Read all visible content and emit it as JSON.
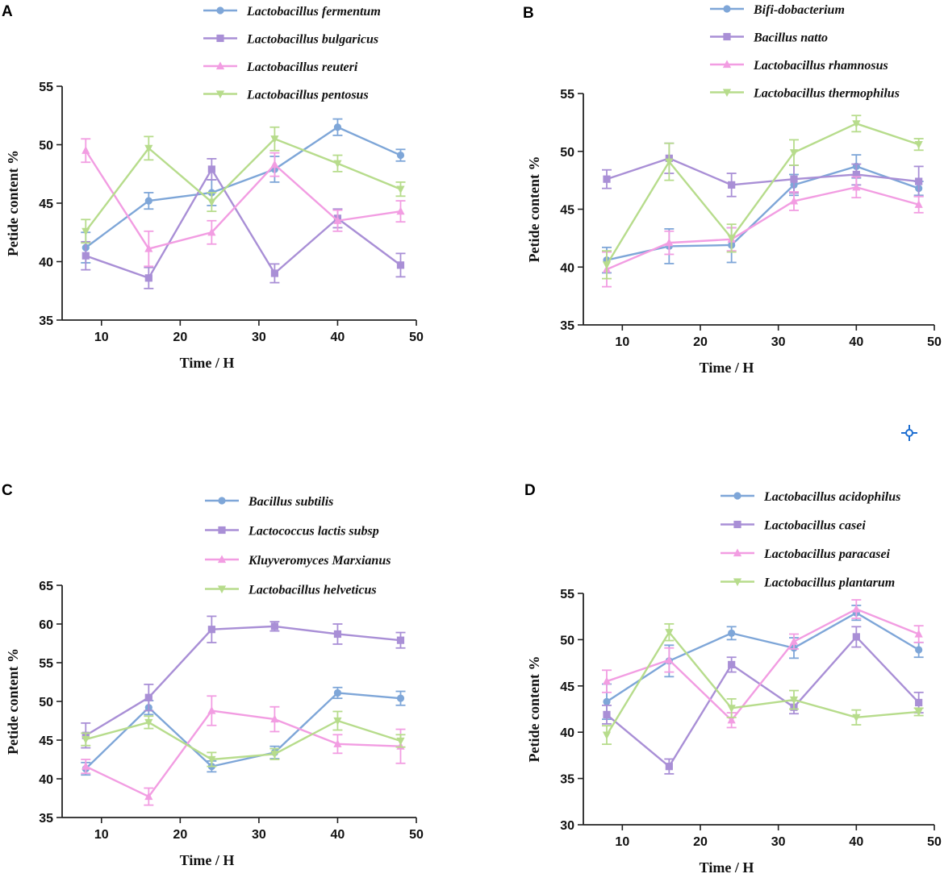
{
  "colors": {
    "blue": "#7ea6d8",
    "purple": "#a98fd6",
    "pink": "#f29de2",
    "green": "#b7dc8c",
    "cursor": "#1f6fd1"
  },
  "cursor_icon": "crosshair-icon",
  "chart_data": [
    {
      "panel": "A",
      "type": "line",
      "xlabel": "Time / H",
      "ylabel": "Petide  content %",
      "xlim": [
        5,
        50
      ],
      "ylim": [
        35,
        55
      ],
      "xticks": [
        10,
        20,
        30,
        40,
        50
      ],
      "yticks": [
        35,
        40,
        45,
        50,
        55
      ],
      "x": [
        8,
        16,
        24,
        32,
        40,
        48
      ],
      "legend_position": "top",
      "series": [
        {
          "name": "Lactobacillus fermentum",
          "color": "blue",
          "marker": "circle",
          "values": [
            41.2,
            45.2,
            45.9,
            47.9,
            51.5,
            49.1
          ],
          "errors": [
            1.3,
            0.7,
            1.1,
            1.1,
            0.7,
            0.5
          ]
        },
        {
          "name": "Lactobacillus bulgaricus",
          "color": "purple",
          "marker": "square",
          "values": [
            40.5,
            38.6,
            47.9,
            39.0,
            43.7,
            39.7
          ],
          "errors": [
            1.2,
            0.9,
            0.9,
            0.8,
            0.8,
            1.0
          ]
        },
        {
          "name": "Lactobacillus reuteri",
          "color": "pink",
          "marker": "triangle-up",
          "values": [
            49.5,
            41.1,
            42.5,
            48.3,
            43.5,
            44.3
          ],
          "errors": [
            1.0,
            1.5,
            1.0,
            1.0,
            0.9,
            0.9
          ]
        },
        {
          "name": "Lactobacillus pentosus",
          "color": "green",
          "marker": "triangle-down",
          "values": [
            42.6,
            49.7,
            45.1,
            50.5,
            48.4,
            46.2
          ],
          "errors": [
            1.0,
            1.0,
            0.8,
            1.0,
            0.7,
            0.6
          ]
        }
      ]
    },
    {
      "panel": "B",
      "type": "line",
      "xlabel": "Time / H",
      "ylabel": "Petide  content %",
      "xlim": [
        5,
        50
      ],
      "ylim": [
        35,
        55
      ],
      "xticks": [
        10,
        20,
        30,
        40,
        50
      ],
      "yticks": [
        35,
        40,
        45,
        50,
        55
      ],
      "x": [
        8,
        16,
        24,
        32,
        40,
        48
      ],
      "legend_position": "top",
      "series": [
        {
          "name": "Bifi-dobacterium",
          "color": "blue",
          "marker": "circle",
          "values": [
            40.6,
            41.8,
            41.9,
            47.1,
            48.7,
            46.8
          ],
          "errors": [
            1.1,
            1.5,
            1.5,
            0.9,
            1.0,
            0.6
          ]
        },
        {
          "name": "Bacillus natto",
          "color": "purple",
          "marker": "square",
          "values": [
            47.6,
            49.4,
            47.1,
            47.6,
            48.0,
            47.4
          ],
          "errors": [
            0.8,
            1.3,
            1.0,
            1.2,
            0.9,
            1.3
          ]
        },
        {
          "name": "Lactobacillus rhamnosus",
          "color": "pink",
          "marker": "triangle-up",
          "values": [
            39.8,
            42.1,
            42.4,
            45.7,
            46.9,
            45.4
          ],
          "errors": [
            1.5,
            1.0,
            1.0,
            0.8,
            0.9,
            0.7
          ]
        },
        {
          "name": "Lactobacillus thermophilus",
          "color": "green",
          "marker": "triangle-down",
          "values": [
            40.2,
            49.1,
            42.5,
            49.9,
            52.4,
            50.6
          ],
          "errors": [
            1.2,
            1.6,
            1.2,
            1.1,
            0.7,
            0.5
          ]
        }
      ]
    },
    {
      "panel": "C",
      "type": "line",
      "xlabel": "Time / H",
      "ylabel": "Petide  content %",
      "xlim": [
        5,
        50
      ],
      "ylim": [
        35,
        65
      ],
      "xticks": [
        10,
        20,
        30,
        40,
        50
      ],
      "yticks": [
        35,
        40,
        45,
        50,
        55,
        60,
        65
      ],
      "x": [
        8,
        16,
        24,
        32,
        40,
        48
      ],
      "legend_position": "top",
      "series": [
        {
          "name": "Bacillus subtilis",
          "color": "blue",
          "marker": "circle",
          "values": [
            41.3,
            49.2,
            41.6,
            43.4,
            51.1,
            50.4
          ],
          "errors": [
            0.8,
            0.9,
            0.7,
            0.8,
            0.7,
            0.9
          ]
        },
        {
          "name": "Lactococcus lactis subsp",
          "color": "purple",
          "marker": "square",
          "values": [
            45.6,
            50.5,
            59.3,
            59.7,
            58.7,
            57.9
          ],
          "errors": [
            1.6,
            1.7,
            1.7,
            0.6,
            1.3,
            1.0
          ]
        },
        {
          "name": "Kluyveromyces Marxianus",
          "color": "pink",
          "marker": "triangle-up",
          "values": [
            41.6,
            37.7,
            48.8,
            47.7,
            44.5,
            44.2
          ],
          "errors": [
            0.9,
            1.1,
            1.9,
            1.6,
            1.2,
            2.2
          ]
        },
        {
          "name": "Lactobacillus helveticus",
          "color": "green",
          "marker": "triangle-down",
          "values": [
            45.1,
            47.3,
            42.5,
            43.2,
            47.5,
            44.9
          ],
          "errors": [
            0.8,
            0.8,
            0.9,
            0.7,
            1.2,
            0.8
          ]
        }
      ]
    },
    {
      "panel": "D",
      "type": "line",
      "xlabel": "Time / H",
      "ylabel": "Petide  content %",
      "xlim": [
        5,
        50
      ],
      "ylim": [
        30,
        55
      ],
      "xticks": [
        10,
        20,
        30,
        40,
        50
      ],
      "yticks": [
        30,
        35,
        40,
        45,
        50,
        55
      ],
      "x": [
        8,
        16,
        24,
        32,
        40,
        48
      ],
      "legend_position": "top",
      "series": [
        {
          "name": "Lactobacillus acidophilus",
          "color": "blue",
          "marker": "circle",
          "values": [
            43.3,
            47.7,
            50.7,
            49.1,
            52.9,
            48.9
          ],
          "errors": [
            1.9,
            1.7,
            0.7,
            1.1,
            0.8,
            0.8
          ]
        },
        {
          "name": "Lactobacillus casei",
          "color": "purple",
          "marker": "square",
          "values": [
            41.9,
            36.3,
            47.3,
            42.7,
            50.3,
            43.2
          ],
          "errors": [
            1.0,
            0.8,
            0.8,
            0.7,
            1.1,
            1.1
          ]
        },
        {
          "name": "Lactobacillus paracasei",
          "color": "pink",
          "marker": "triangle-up",
          "values": [
            45.5,
            47.8,
            41.3,
            49.8,
            53.3,
            50.6
          ],
          "errors": [
            1.2,
            1.3,
            0.8,
            0.8,
            1.0,
            0.9
          ]
        },
        {
          "name": "Lactobacillus plantarum",
          "color": "green",
          "marker": "triangle-down",
          "values": [
            39.7,
            50.8,
            42.6,
            43.5,
            41.6,
            42.2
          ],
          "errors": [
            1.0,
            0.9,
            1.0,
            1.0,
            0.8,
            0.4
          ]
        }
      ]
    }
  ]
}
